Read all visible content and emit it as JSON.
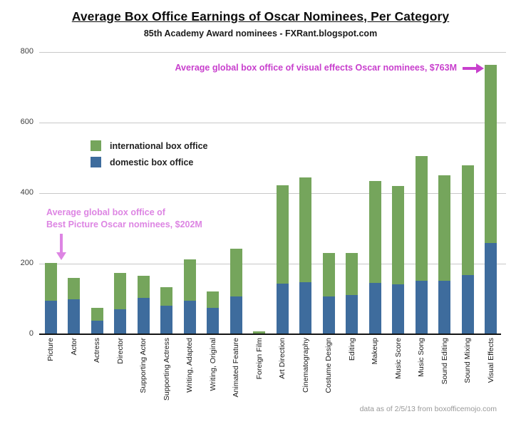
{
  "page": {
    "title": "Average Box Office Earnings of Oscar Nominees, Per Category",
    "subtitle": "85th Academy Award nominees - FXRant.blogspot.com",
    "footer": "data as of 2/5/13 from boxofficemojo.com"
  },
  "annotations": {
    "vfx_text": "Average global box office of visual effects Oscar nominees, $763M",
    "picture_line1": "Average global box office of",
    "picture_line2": "Best Picture Oscar nominees, $202M"
  },
  "legend": {
    "items": [
      {
        "label": "international box office",
        "series": "international"
      },
      {
        "label": "domestic box office",
        "series": "domestic"
      }
    ]
  },
  "colors": {
    "international": "#75a55c",
    "domestic": "#3e6c9d",
    "annotation_bright_magenta": "#c83fcd",
    "annotation_light_orchid": "#dd85e3",
    "gridline": "#c8c8c8",
    "axis": "#141414"
  },
  "chart_data": {
    "type": "bar",
    "stacked": true,
    "title": "Average Box Office Earnings of Oscar Nominees, Per Category",
    "subtitle": "85th Academy Award nominees - FXRant.blogspot.com",
    "ylabel": "",
    "xlabel": "",
    "ylim": [
      0,
      800
    ],
    "yticks": [
      0,
      200,
      400,
      600,
      800
    ],
    "grid": true,
    "legend_position": "upper-left-inside",
    "units": "millions USD",
    "categories": [
      "Picture",
      "Actor",
      "Actress",
      "Director",
      "Supporting Actor",
      "Supporting Actress",
      "Writing, Adapted",
      "Writing, Original",
      "Animated Feature",
      "Foreign Film",
      "Art Direction",
      "Cinematography",
      "Costume Design",
      "Editing",
      "Makeup",
      "Music Score",
      "Music Song",
      "Sound Editing",
      "Sound Mixing",
      "Visual Effects"
    ],
    "series": [
      {
        "name": "domestic box office",
        "color": "#3e6c9d",
        "values": [
          95,
          100,
          38,
          70,
          103,
          80,
          94,
          74,
          107,
          2,
          144,
          148,
          107,
          112,
          146,
          141,
          151,
          152,
          167,
          258
        ]
      },
      {
        "name": "international box office",
        "color": "#75a55c",
        "values": [
          107,
          60,
          37,
          103,
          62,
          54,
          118,
          48,
          136,
          6,
          278,
          297,
          123,
          119,
          289,
          279,
          354,
          298,
          311,
          505
        ]
      }
    ],
    "totals": [
      202,
      160,
      75,
      173,
      165,
      134,
      212,
      122,
      243,
      8,
      422,
      445,
      230,
      231,
      435,
      420,
      505,
      450,
      478,
      763
    ],
    "callouts": [
      {
        "category": "Picture",
        "total": 202,
        "text": "Average global box office of Best Picture Oscar nominees, $202M"
      },
      {
        "category": "Visual Effects",
        "total": 763,
        "text": "Average global box office of visual effects Oscar nominees, $763M"
      }
    ]
  }
}
